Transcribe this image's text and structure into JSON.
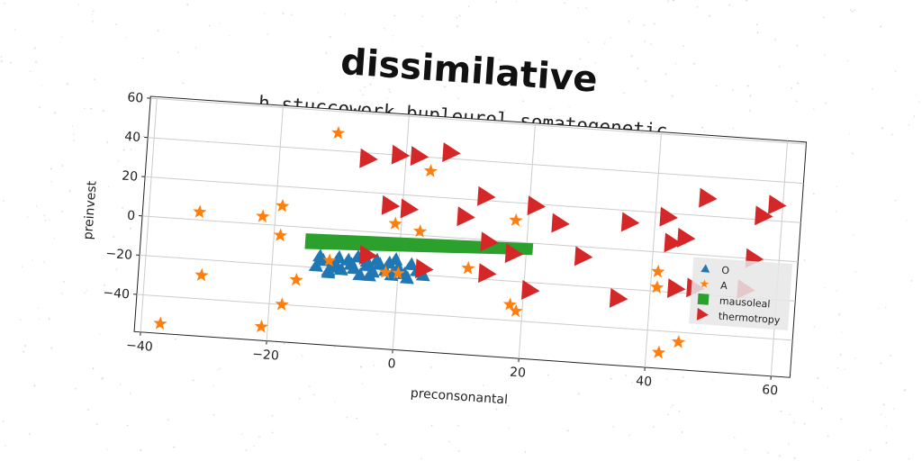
{
  "title": "dissimilative",
  "chart_data": {
    "type": "scatter",
    "title": "h stuccowork bupleurol somatogenetic",
    "xlabel": "preconsonantal",
    "ylabel": "preinvest",
    "xlim": [
      -41,
      63
    ],
    "ylim": [
      -59,
      61
    ],
    "xticks": [
      -40,
      -20,
      0,
      20,
      40,
      60
    ],
    "yticks": [
      -40,
      -20,
      0,
      20,
      40,
      60
    ],
    "grid": true,
    "legend_position": "right",
    "series": [
      {
        "name": "O",
        "marker": "triangle-up",
        "color": "#1f77b4",
        "points": [
          [
            -13,
            -19
          ],
          [
            -12,
            -16
          ],
          [
            -11,
            -21
          ],
          [
            -10,
            -17
          ],
          [
            -9,
            -20
          ],
          [
            -8,
            -15
          ],
          [
            -7,
            -19
          ],
          [
            -6,
            -22
          ],
          [
            -5,
            -17
          ],
          [
            -4,
            -20
          ],
          [
            -3,
            -16
          ],
          [
            -2,
            -19
          ],
          [
            -1,
            -21
          ],
          [
            0,
            -17
          ],
          [
            1,
            -20
          ],
          [
            2,
            -15
          ],
          [
            -12.5,
            -14
          ],
          [
            -9.5,
            -14
          ],
          [
            -6.5,
            -13
          ],
          [
            -3.5,
            -14
          ],
          [
            -0.5,
            -13
          ],
          [
            3,
            -18
          ],
          [
            4,
            -20
          ],
          [
            -11,
            -22
          ],
          [
            -7.5,
            -17
          ],
          [
            -4.5,
            -22
          ],
          [
            -1.5,
            -15
          ],
          [
            1.5,
            -22
          ],
          [
            -10,
            -19
          ],
          [
            -5,
            -15
          ]
        ]
      },
      {
        "name": "A",
        "marker": "star",
        "color": "#ff7f0e",
        "points": [
          [
            -37,
            -54
          ],
          [
            -32,
            4
          ],
          [
            -31,
            -28
          ],
          [
            -22,
            4
          ],
          [
            -21,
            -52
          ],
          [
            -19,
            10
          ],
          [
            -19,
            -5
          ],
          [
            -18,
            -40
          ],
          [
            -16,
            -27
          ],
          [
            -11,
            49
          ],
          [
            -11,
            -16
          ],
          [
            -2,
            -20
          ],
          [
            -1,
            5
          ],
          [
            0,
            -20
          ],
          [
            3,
            2
          ],
          [
            4,
            33
          ],
          [
            11,
            -15
          ],
          [
            18,
            11
          ],
          [
            18,
            -32
          ],
          [
            19,
            -35
          ],
          [
            41,
            -10
          ],
          [
            41,
            -18
          ],
          [
            42,
            -51
          ],
          [
            45,
            -45
          ]
        ]
      },
      {
        "name": "mausoleal",
        "marker": "square",
        "color": "#2ca02c",
        "band": {
          "x0": -15,
          "x1": 21,
          "y_top_start": -3,
          "y_top_end": 0,
          "y_bot_start": -11,
          "y_bot_end": -6
        }
      },
      {
        "name": "thermotropy",
        "marker": "triangle-right",
        "color": "#d62728",
        "points": [
          [
            -6,
            37
          ],
          [
            1,
            13
          ],
          [
            2,
            40
          ],
          [
            7,
            43
          ],
          [
            10,
            11
          ],
          [
            13,
            22
          ],
          [
            14,
            -1
          ],
          [
            14,
            -17
          ],
          [
            18,
            -6
          ],
          [
            21,
            19
          ],
          [
            21,
            -24
          ],
          [
            25,
            11
          ],
          [
            29,
            -5
          ],
          [
            35,
            -25
          ],
          [
            36,
            14
          ],
          [
            42,
            18
          ],
          [
            43,
            5
          ],
          [
            44,
            -18
          ],
          [
            45,
            8
          ],
          [
            47,
            -17
          ],
          [
            48,
            29
          ],
          [
            55,
            -16
          ],
          [
            56,
            0
          ],
          [
            57,
            22
          ],
          [
            59,
            28
          ],
          [
            -2,
            14
          ],
          [
            4,
            -17
          ],
          [
            -5,
            -12
          ],
          [
            -1,
            40
          ]
        ]
      }
    ]
  }
}
